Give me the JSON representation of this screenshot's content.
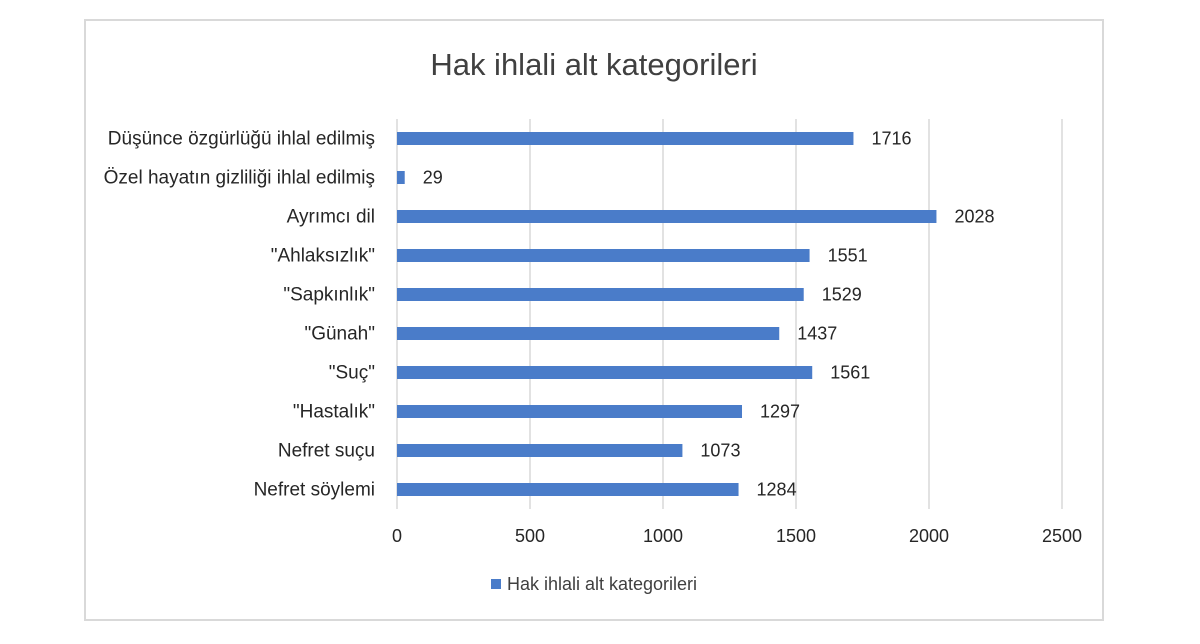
{
  "chart_data": {
    "type": "bar",
    "orientation": "horizontal",
    "title": "Hak ihlali alt kategorileri",
    "xlabel": "",
    "ylabel": "",
    "categories": [
      "Düşünce özgürlüğü ihlal edilmiş",
      "Özel hayatın gizliliği ihlal edilmiş",
      "Ayrımcı dil",
      "\"Ahlaksızlık\"",
      "\"Sapkınlık\"",
      "\"Günah\"",
      "\"Suç\"",
      "\"Hastalık\"",
      "Nefret suçu",
      "Nefret söylemi"
    ],
    "series": [
      {
        "name": "Hak ihlali alt kategorileri",
        "color": "#4a7cc9",
        "values": [
          1716,
          29,
          2028,
          1551,
          1529,
          1437,
          1561,
          1297,
          1073,
          1284
        ]
      }
    ],
    "xlim": [
      0,
      2500
    ],
    "xticks": [
      "0",
      "500",
      "1000",
      "1500",
      "2000",
      "2500"
    ],
    "grid": true,
    "data_labels": true,
    "legend_position": "bottom"
  }
}
